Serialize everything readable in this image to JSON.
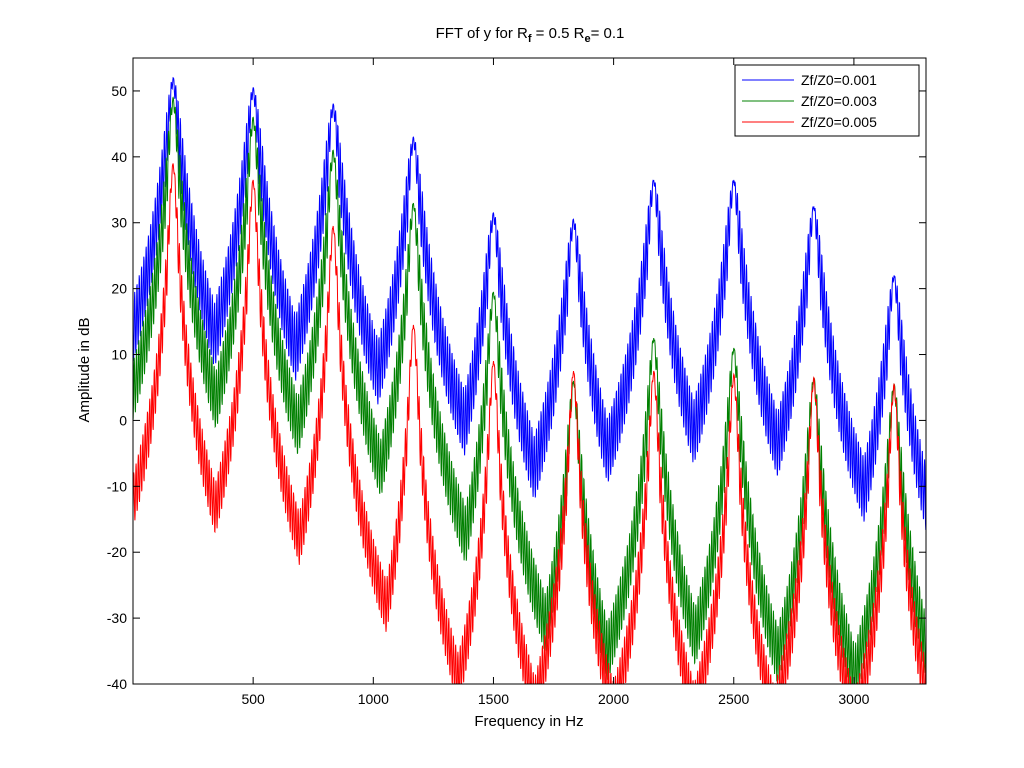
{
  "chart_data": {
    "type": "line",
    "title": {
      "prefix": "FFT of y for R",
      "sub1": "f",
      "mid": " = 0.5 R",
      "sub2": "e",
      "suffix": "= 0.1"
    },
    "xlabel": "Frequency in Hz",
    "ylabel": "Amplitude in dB",
    "xlim": [
      0,
      3300
    ],
    "ylim": [
      -40,
      55
    ],
    "x_ticks": [
      500,
      1000,
      1500,
      2000,
      2500,
      3000
    ],
    "y_ticks": [
      50,
      40,
      30,
      20,
      10,
      0,
      -10,
      -20,
      -30,
      -40
    ],
    "grid": false,
    "legend_position": "top-right",
    "peak_frequencies": [
      167,
      500,
      833,
      1167,
      1500,
      1833,
      2167,
      2500,
      2833,
      3167
    ],
    "series": [
      {
        "name": "Zf/Z0=0.001",
        "color": "#0000ff",
        "peaks_db": [
          52,
          50.5,
          48,
          43,
          31.5,
          30.5,
          36.5,
          36.5,
          32.5,
          22
        ]
      },
      {
        "name": "Zf/Z0=0.003",
        "color": "#008000",
        "peaks_db": [
          49,
          46,
          41,
          33,
          19.5,
          6,
          12.5,
          11,
          6.5,
          5.5
        ]
      },
      {
        "name": "Zf/Z0=0.005",
        "color": "#ff0000",
        "peaks_db": [
          39,
          36.5,
          29.5,
          14.5,
          9,
          7.5,
          7.5,
          7,
          6.5,
          5.5
        ]
      }
    ]
  }
}
